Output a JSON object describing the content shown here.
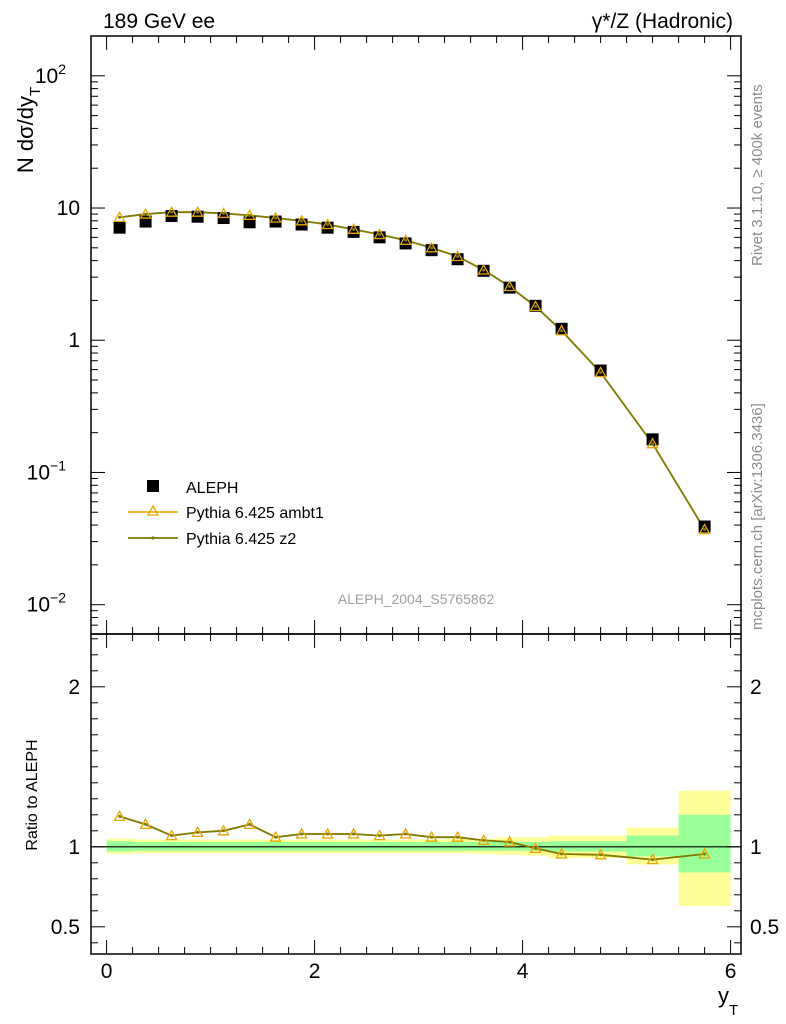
{
  "header": {
    "left_title": "189 GeV ee",
    "right_title": "γ*/Z (Hadronic)"
  },
  "side_labels": {
    "rivet": "Rivet 3.1.10, ≥ 400k events",
    "mcplots": "mcplots.cern.ch [arXiv:1306.3436]"
  },
  "colors": {
    "data": "#000000",
    "ambt1": "#e8a400",
    "z2": "#7f7a00",
    "band_inner": "#99ff99",
    "band_outer": "#ffff99"
  },
  "chart_data": [
    {
      "type": "scatter",
      "panel": "main",
      "analysis_label": "ALEPH_2004_S5765862",
      "ylabel_main": "N dσ/dy",
      "ylabel_sub": "T",
      "yscale": "log",
      "ylim": [
        0.006,
        200
      ],
      "xlim": [
        -0.15,
        6.1
      ],
      "y_ticks": [
        {
          "value": 0.01,
          "base": "10",
          "exp": "−2"
        },
        {
          "value": 0.1,
          "base": "10",
          "exp": "−1"
        },
        {
          "value": 1,
          "base": "1",
          "exp": ""
        },
        {
          "value": 10,
          "base": "10",
          "exp": ""
        },
        {
          "value": 100,
          "base": "10",
          "exp": "2"
        }
      ],
      "legend": {
        "placement": "lower-left",
        "entries": [
          "ALEPH",
          "Pythia 6.425 ambt1",
          "Pythia 6.425 z2"
        ]
      },
      "x": [
        0.125,
        0.375,
        0.625,
        0.875,
        1.125,
        1.375,
        1.625,
        1.875,
        2.125,
        2.375,
        2.625,
        2.875,
        3.125,
        3.375,
        3.625,
        3.875,
        4.125,
        4.375,
        4.75,
        5.25,
        5.75
      ],
      "series": [
        {
          "name": "ALEPH",
          "values": [
            7.1,
            7.9,
            8.7,
            8.6,
            8.4,
            7.8,
            7.9,
            7.5,
            7.1,
            6.6,
            6.0,
            5.4,
            4.8,
            4.1,
            3.35,
            2.5,
            1.82,
            1.22,
            0.59,
            0.178,
            0.039
          ]
        },
        {
          "name": "Pythia 6.425 ambt1",
          "values": [
            8.5,
            9.0,
            9.3,
            9.3,
            9.1,
            8.8,
            8.4,
            8.0,
            7.5,
            6.9,
            6.3,
            5.7,
            5.0,
            4.3,
            3.4,
            2.55,
            1.8,
            1.18,
            0.57,
            0.165,
            0.037
          ]
        },
        {
          "name": "Pythia 6.425 z2",
          "values": [
            8.5,
            9.0,
            9.3,
            9.3,
            9.1,
            8.8,
            8.4,
            8.0,
            7.5,
            6.9,
            6.3,
            5.7,
            5.0,
            4.3,
            3.4,
            2.55,
            1.8,
            1.18,
            0.57,
            0.165,
            0.037
          ]
        }
      ]
    },
    {
      "type": "line",
      "panel": "ratio",
      "ylabel": "Ratio to ALEPH",
      "ylim": [
        0.33,
        2.33
      ],
      "xlim": [
        -0.15,
        6.1
      ],
      "xlabel_main": "y",
      "xlabel_sub": "T",
      "x_ticks": [
        0,
        2,
        4,
        6
      ],
      "y_ticks": [
        "0.5",
        "1",
        "2"
      ],
      "x": [
        0.125,
        0.375,
        0.625,
        0.875,
        1.125,
        1.375,
        1.625,
        1.875,
        2.125,
        2.375,
        2.625,
        2.875,
        3.125,
        3.375,
        3.625,
        3.875,
        4.125,
        4.375,
        4.75,
        5.25,
        5.75
      ],
      "bin_edges": [
        0,
        0.25,
        0.5,
        0.75,
        1.0,
        1.25,
        1.5,
        1.75,
        2.0,
        2.25,
        2.5,
        2.75,
        3.0,
        3.25,
        3.5,
        3.75,
        4.0,
        4.25,
        4.5,
        5.0,
        5.5,
        6.0
      ],
      "band_inner": [
        [
          0.97,
          1.035
        ],
        [
          0.975,
          1.03
        ],
        [
          0.975,
          1.03
        ],
        [
          0.975,
          1.03
        ],
        [
          0.975,
          1.03
        ],
        [
          0.975,
          1.03
        ],
        [
          0.975,
          1.03
        ],
        [
          0.975,
          1.03
        ],
        [
          0.975,
          1.03
        ],
        [
          0.975,
          1.03
        ],
        [
          0.975,
          1.03
        ],
        [
          0.975,
          1.03
        ],
        [
          0.975,
          1.03
        ],
        [
          0.975,
          1.03
        ],
        [
          0.975,
          1.03
        ],
        [
          0.975,
          1.03
        ],
        [
          0.975,
          1.03
        ],
        [
          0.97,
          1.035
        ],
        [
          0.97,
          1.035
        ],
        [
          0.94,
          1.07
        ],
        [
          0.84,
          1.2
        ]
      ],
      "band_outer": [
        [
          0.955,
          1.05
        ],
        [
          0.96,
          1.045
        ],
        [
          0.96,
          1.045
        ],
        [
          0.96,
          1.045
        ],
        [
          0.96,
          1.045
        ],
        [
          0.96,
          1.045
        ],
        [
          0.96,
          1.045
        ],
        [
          0.96,
          1.045
        ],
        [
          0.96,
          1.045
        ],
        [
          0.96,
          1.045
        ],
        [
          0.96,
          1.045
        ],
        [
          0.96,
          1.045
        ],
        [
          0.96,
          1.045
        ],
        [
          0.96,
          1.05
        ],
        [
          0.955,
          1.05
        ],
        [
          0.95,
          1.06
        ],
        [
          0.945,
          1.06
        ],
        [
          0.93,
          1.07
        ],
        [
          0.93,
          1.07
        ],
        [
          0.89,
          1.12
        ],
        [
          0.63,
          1.35
        ]
      ],
      "series": [
        {
          "name": "Pythia 6.425 ambt1",
          "values": [
            1.19,
            1.14,
            1.07,
            1.09,
            1.1,
            1.14,
            1.06,
            1.08,
            1.08,
            1.08,
            1.07,
            1.08,
            1.06,
            1.06,
            1.04,
            1.03,
            0.99,
            0.955,
            0.95,
            0.92,
            0.955
          ]
        },
        {
          "name": "Pythia 6.425 z2",
          "values": [
            1.19,
            1.14,
            1.07,
            1.09,
            1.1,
            1.14,
            1.06,
            1.08,
            1.08,
            1.08,
            1.07,
            1.08,
            1.06,
            1.06,
            1.04,
            1.03,
            0.99,
            0.955,
            0.95,
            0.92,
            0.955
          ]
        }
      ]
    }
  ]
}
